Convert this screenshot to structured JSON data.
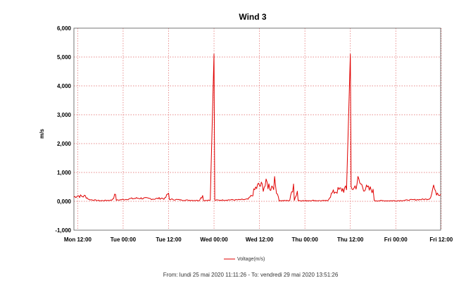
{
  "chart_data": {
    "type": "line",
    "title": "Wind 3",
    "ylabel": "m/s",
    "xlabel": "",
    "ylim": [
      -1000,
      6000
    ],
    "yticks": [
      -1000,
      0,
      1000,
      2000,
      3000,
      4000,
      5000,
      6000
    ],
    "ytick_labels": [
      "-1,000",
      "0,000",
      "1,000",
      "2,000",
      "3,000",
      "4,000",
      "5,000",
      "6,000"
    ],
    "xlim_hours": [
      -1,
      95.85
    ],
    "xticks": [
      {
        "label": "Mon 12:00",
        "hour": 0
      },
      {
        "label": "Tue 00:00",
        "hour": 12
      },
      {
        "label": "Tue 12:00",
        "hour": 24
      },
      {
        "label": "Wed 00:00",
        "hour": 36
      },
      {
        "label": "Wed 12:00",
        "hour": 48
      },
      {
        "label": "Thu 00:00",
        "hour": 60
      },
      {
        "label": "Thu 12:00",
        "hour": 72
      },
      {
        "label": "Fri 00:00",
        "hour": 84
      },
      {
        "label": "Fri 12:00",
        "hour": 96
      }
    ],
    "grid": true,
    "legend_position": "bottom",
    "series": [
      {
        "name": "Voltage(m/s)",
        "color": "#e00000",
        "points": [
          [
            -1,
            150
          ],
          [
            0,
            200
          ],
          [
            1,
            170
          ],
          [
            2,
            180
          ],
          [
            3,
            60
          ],
          [
            6,
            20
          ],
          [
            9,
            40
          ],
          [
            10,
            240
          ],
          [
            10.2,
            40
          ],
          [
            12,
            60
          ],
          [
            14,
            90
          ],
          [
            16,
            110
          ],
          [
            18,
            100
          ],
          [
            20,
            80
          ],
          [
            22,
            110
          ],
          [
            23,
            90
          ],
          [
            24,
            280
          ],
          [
            24.2,
            70
          ],
          [
            26,
            60
          ],
          [
            28,
            40
          ],
          [
            32,
            30
          ],
          [
            33,
            200
          ],
          [
            33.2,
            30
          ],
          [
            35,
            40
          ],
          [
            36,
            5100
          ],
          [
            36.2,
            40
          ],
          [
            38,
            40
          ],
          [
            40,
            50
          ],
          [
            42,
            50
          ],
          [
            44,
            60
          ],
          [
            45,
            70
          ],
          [
            46,
            200
          ],
          [
            47,
            450
          ],
          [
            48,
            550
          ],
          [
            49,
            500
          ],
          [
            50,
            600
          ],
          [
            51,
            480
          ],
          [
            52,
            650
          ],
          [
            53,
            150
          ],
          [
            53.2,
            20
          ],
          [
            54,
            20
          ],
          [
            56,
            30
          ],
          [
            57,
            600
          ],
          [
            57.2,
            40
          ],
          [
            58,
            350
          ],
          [
            58.2,
            30
          ],
          [
            60,
            20
          ],
          [
            62,
            30
          ],
          [
            64,
            20
          ],
          [
            66,
            20
          ],
          [
            67,
            250
          ],
          [
            68,
            350
          ],
          [
            69,
            380
          ],
          [
            70,
            420
          ],
          [
            71,
            400
          ],
          [
            72,
            5100
          ],
          [
            72.2,
            480
          ],
          [
            73,
            450
          ],
          [
            74,
            700
          ],
          [
            75,
            550
          ],
          [
            76,
            450
          ],
          [
            77,
            400
          ],
          [
            78,
            420
          ],
          [
            78.3,
            20
          ],
          [
            80,
            20
          ],
          [
            82,
            20
          ],
          [
            84,
            20
          ],
          [
            86,
            30
          ],
          [
            88,
            50
          ],
          [
            90,
            60
          ],
          [
            92,
            70
          ],
          [
            93,
            100
          ],
          [
            94,
            550
          ],
          [
            94.5,
            280
          ],
          [
            95,
            320
          ],
          [
            95.85,
            240
          ]
        ]
      }
    ]
  },
  "footer": {
    "text": "From: lundi 25 mai 2020 11:11:26  -  To: vendredi 29 mai 2020 13:51:26"
  }
}
